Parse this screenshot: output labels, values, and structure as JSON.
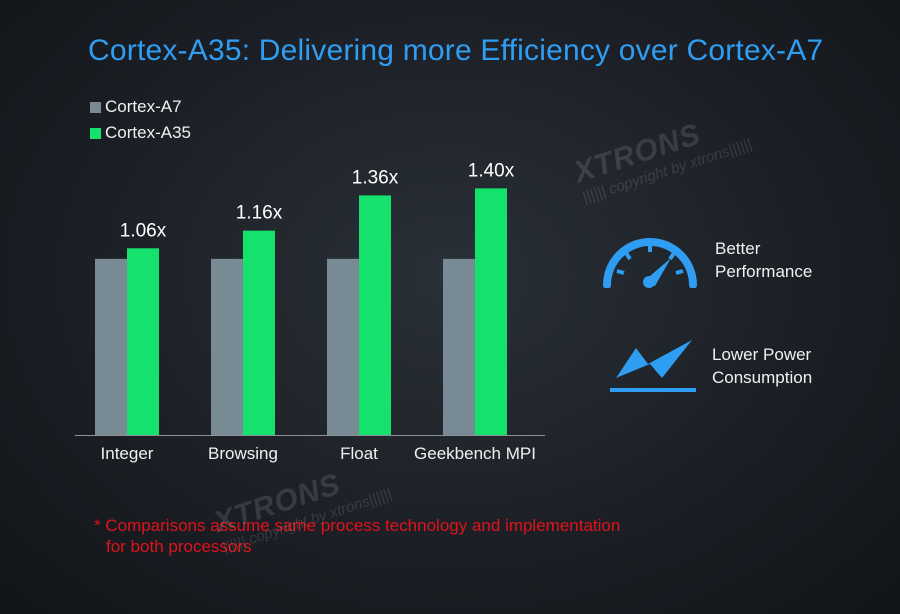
{
  "title": "Cortex-A35: Delivering more Efficiency over Cortex-A7",
  "colors": {
    "title": "#2f9df2",
    "cortex_a7": "#788a94",
    "cortex_a35": "#14e26c",
    "icon": "#2f9df2",
    "footnote": "#e0121a"
  },
  "chart_data": {
    "type": "bar",
    "title": "Cortex-A35: Delivering more Efficiency over Cortex-A7",
    "xlabel": "",
    "ylabel": "",
    "categories": [
      "Integer",
      "Browsing",
      "Float",
      "Geekbench MPI"
    ],
    "series": [
      {
        "name": "Cortex-A7",
        "values": [
          1.0,
          1.0,
          1.0,
          1.0
        ]
      },
      {
        "name": "Cortex-A35",
        "values": [
          1.06,
          1.16,
          1.36,
          1.4
        ]
      }
    ],
    "data_labels": [
      "1.06x",
      "1.16x",
      "1.36x",
      "1.40x"
    ],
    "ylim": [
      0,
      1.93
    ],
    "grid": false,
    "legend_position": "top-left"
  },
  "features": [
    {
      "icon": "speedometer-icon",
      "line1": "Better",
      "line2": "Performance"
    },
    {
      "icon": "lightning-icon",
      "line1": "Lower Power",
      "line2": "Consumption"
    }
  ],
  "footnote": {
    "line1": "* Comparisons assume same process technology and implementation",
    "line2": "for both processors"
  },
  "watermark": {
    "logo": "XTRONS",
    "copyright": "|||||| copyright by xtrons||||||"
  }
}
